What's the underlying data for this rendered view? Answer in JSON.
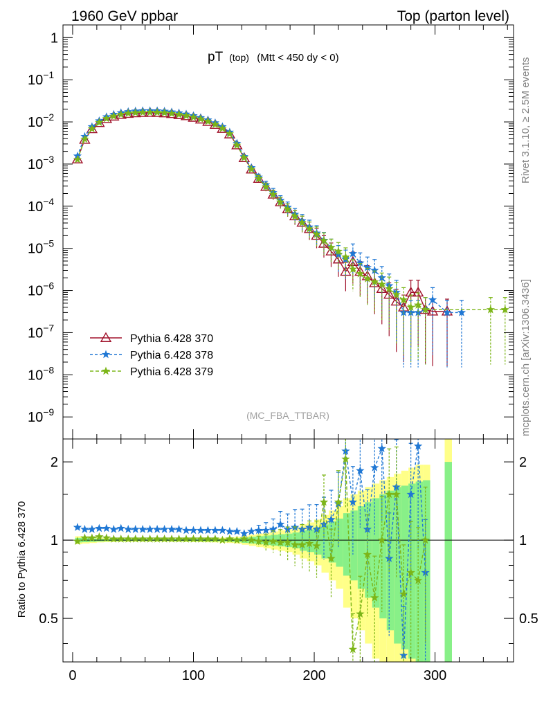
{
  "header": {
    "left": "1960 GeV ppbar",
    "right": "Top (parton level)"
  },
  "side_labels": {
    "rivet": "Rivet 3.1.10, ≥ 2.5M events",
    "mcplots": "mcplots.cern.ch [arXiv:1306.3436]"
  },
  "colors": {
    "p370": "#a0112a",
    "p378": "#1f77d4",
    "p379": "#7cb518",
    "band_yellow": "#ffff88",
    "band_green": "#88f088"
  },
  "chart_data": [
    {
      "type": "line",
      "title_main": "pT",
      "title_sub": "(top)",
      "title_rest": "(Mtt < 450 dy < 0)",
      "watermark": "(MC_FBA_TTBAR)",
      "yscale": "log",
      "xlim": [
        -8,
        365
      ],
      "ylim": [
        3e-10,
        2.0
      ],
      "y_ticks": [
        {
          "v": 1,
          "label": "1"
        },
        {
          "v": 0.1,
          "base": "10",
          "exp": "−1"
        },
        {
          "v": 0.01,
          "base": "10",
          "exp": "−2"
        },
        {
          "v": 0.001,
          "base": "10",
          "exp": "−3"
        },
        {
          "v": 0.0001,
          "base": "10",
          "exp": "−4"
        },
        {
          "v": 1e-05,
          "base": "10",
          "exp": "−5"
        },
        {
          "v": 1e-06,
          "base": "10",
          "exp": "−6"
        },
        {
          "v": 1e-07,
          "base": "10",
          "exp": "−7"
        },
        {
          "v": 1e-08,
          "base": "10",
          "exp": "−8"
        },
        {
          "v": 1e-09,
          "base": "10",
          "exp": "−9"
        }
      ],
      "legend": {
        "placement": "lower-left",
        "entries": [
          {
            "label": "Pythia 6.428 370",
            "key": "p370"
          },
          {
            "label": "Pythia 6.428 378",
            "key": "p378"
          },
          {
            "label": "Pythia 6.428 379",
            "key": "p379"
          }
        ]
      },
      "series": [
        {
          "name": "Pythia 6.428 370",
          "key": "p370",
          "marker": "triangle",
          "x": [
            4,
            10,
            16,
            22,
            28,
            34,
            40,
            46,
            52,
            58,
            64,
            70,
            76,
            82,
            88,
            94,
            100,
            106,
            112,
            118,
            124,
            130,
            136,
            142,
            148,
            154,
            160,
            166,
            172,
            178,
            184,
            190,
            196,
            202,
            208,
            214,
            220,
            226,
            232,
            238,
            244,
            250,
            256,
            262,
            268,
            274,
            280,
            286,
            292,
            298,
            310
          ],
          "y": [
            0.0013,
            0.0038,
            0.0068,
            0.0095,
            0.0118,
            0.0135,
            0.0148,
            0.0157,
            0.0162,
            0.0165,
            0.0166,
            0.0165,
            0.0161,
            0.0155,
            0.0147,
            0.0138,
            0.0127,
            0.0115,
            0.0101,
            0.0086,
            0.0069,
            0.0051,
            0.0028,
            0.0014,
            0.00075,
            0.00045,
            0.00029,
            0.00019,
            0.000125,
            8.5e-05,
            5.8e-05,
            4.1e-05,
            2.9e-05,
            2e-05,
            1.3e-05,
            8.5e-06,
            5.5e-06,
            2.8e-06,
            4.8e-06,
            2.8e-06,
            2.2e-06,
            1.5e-06,
            1.1e-06,
            8e-07,
            5.5e-07,
            4e-07,
            9e-07,
            9e-07,
            3.5e-07,
            3.2e-07,
            3.2e-07
          ]
        },
        {
          "name": "Pythia 6.428 378",
          "key": "p378",
          "marker": "star",
          "x": [
            4,
            10,
            16,
            22,
            28,
            34,
            40,
            46,
            52,
            58,
            64,
            70,
            76,
            82,
            88,
            94,
            100,
            106,
            112,
            118,
            124,
            130,
            136,
            142,
            148,
            154,
            160,
            166,
            172,
            178,
            184,
            190,
            196,
            202,
            208,
            214,
            220,
            226,
            232,
            238,
            244,
            250,
            256,
            262,
            268,
            274,
            280,
            286,
            292,
            298,
            310,
            322
          ],
          "y": [
            0.00155,
            0.0045,
            0.0077,
            0.0106,
            0.0132,
            0.0151,
            0.0165,
            0.0175,
            0.0181,
            0.0184,
            0.0184,
            0.0183,
            0.0179,
            0.0172,
            0.0163,
            0.0153,
            0.014,
            0.0126,
            0.0111,
            0.0095,
            0.0077,
            0.0057,
            0.0031,
            0.0015,
            0.00082,
            0.00049,
            0.00032,
            0.00021,
            0.000137,
            9.4e-05,
            6.4e-05,
            4.5e-05,
            3.2e-05,
            2.3e-05,
            1.55e-05,
            1.05e-05,
            7.2e-06,
            5.5e-06,
            7.5e-06,
            4.5e-06,
            3.5e-06,
            3e-06,
            2e-06,
            1.3e-06,
            9e-07,
            3e-07,
            3e-07,
            3e-07,
            3.5e-07,
            6e-07,
            3e-07,
            3e-07
          ]
        },
        {
          "name": "Pythia 6.428 379",
          "key": "p379",
          "marker": "star",
          "x": [
            4,
            10,
            16,
            22,
            28,
            34,
            40,
            46,
            52,
            58,
            64,
            70,
            76,
            82,
            88,
            94,
            100,
            106,
            112,
            118,
            124,
            130,
            136,
            142,
            148,
            154,
            160,
            166,
            172,
            178,
            184,
            190,
            196,
            202,
            208,
            214,
            220,
            226,
            232,
            238,
            244,
            250,
            256,
            262,
            268,
            274,
            280,
            286,
            292,
            346,
            358
          ],
          "y": [
            0.00128,
            0.0039,
            0.0069,
            0.0097,
            0.012,
            0.0137,
            0.015,
            0.016,
            0.0165,
            0.0168,
            0.0169,
            0.0168,
            0.0164,
            0.0158,
            0.015,
            0.014,
            0.0129,
            0.0117,
            0.0103,
            0.0087,
            0.007,
            0.0052,
            0.0028,
            0.00142,
            0.00075,
            0.00045,
            0.00029,
            0.00019,
            0.000125,
            8.5e-05,
            5.8e-05,
            4.1e-05,
            2.9e-05,
            2.15e-05,
            1.52e-05,
            1.05e-05,
            8.5e-06,
            6.2e-06,
            3.2e-06,
            2.5e-06,
            1.9e-06,
            1.6e-06,
            1.4e-06,
            1.1e-06,
            8e-07,
            6e-07,
            4e-07,
            4.5e-07,
            3.5e-07,
            3.5e-07,
            3.5e-07
          ]
        }
      ]
    },
    {
      "type": "line",
      "ylabel": "Ratio to Pythia 6.428 370",
      "yscale": "log",
      "xlim": [
        -8,
        365
      ],
      "ylim": [
        0.34,
        2.45
      ],
      "x_ticks": [
        0,
        100,
        200,
        300
      ],
      "y_ticks": [
        0.5,
        1,
        2
      ],
      "reference_line": 1,
      "band_yellow_x": [
        2,
        8,
        14,
        20,
        26,
        32,
        38,
        44,
        50,
        56,
        62,
        68,
        74,
        80,
        86,
        92,
        98,
        104,
        110,
        116,
        122,
        128,
        134,
        140,
        146,
        152,
        158,
        164,
        170,
        176,
        182,
        188,
        194,
        200,
        206,
        212,
        218,
        224,
        230,
        236,
        242,
        248,
        254,
        260,
        266,
        272,
        278,
        284,
        290,
        296,
        308
      ],
      "band_yellow_y": [
        0.035,
        0.03,
        0.025,
        0.02,
        0.018,
        0.016,
        0.015,
        0.015,
        0.014,
        0.014,
        0.014,
        0.014,
        0.014,
        0.015,
        0.015,
        0.016,
        0.017,
        0.018,
        0.019,
        0.02,
        0.022,
        0.025,
        0.03,
        0.04,
        0.05,
        0.06,
        0.07,
        0.08,
        0.09,
        0.1,
        0.12,
        0.15,
        0.17,
        0.2,
        0.25,
        0.3,
        0.35,
        0.45,
        0.5,
        0.55,
        0.6,
        0.65,
        0.7,
        0.75,
        0.8,
        0.85,
        0.9,
        0.95,
        0.95,
        0,
        1.5
      ],
      "band_green_y": [
        0.02,
        0.018,
        0.015,
        0.012,
        0.01,
        0.009,
        0.009,
        0.008,
        0.008,
        0.008,
        0.008,
        0.008,
        0.008,
        0.009,
        0.009,
        0.01,
        0.01,
        0.011,
        0.012,
        0.012,
        0.013,
        0.015,
        0.018,
        0.024,
        0.03,
        0.036,
        0.042,
        0.048,
        0.054,
        0.06,
        0.07,
        0.09,
        0.1,
        0.12,
        0.15,
        0.18,
        0.21,
        0.27,
        0.3,
        0.35,
        0.4,
        0.45,
        0.5,
        0.55,
        0.6,
        0.62,
        0.65,
        0.68,
        0.7,
        0,
        1.0
      ],
      "series": [
        {
          "name": "Pythia 6.428 378",
          "key": "p378",
          "x": [
            4,
            10,
            16,
            22,
            28,
            34,
            40,
            46,
            52,
            58,
            64,
            70,
            76,
            82,
            88,
            94,
            100,
            106,
            112,
            118,
            124,
            130,
            136,
            142,
            148,
            154,
            160,
            166,
            172,
            178,
            184,
            190,
            196,
            202,
            208,
            214,
            220,
            226,
            232,
            238,
            244,
            250,
            256,
            262,
            268,
            274,
            280,
            286,
            292
          ],
          "y": [
            1.12,
            1.1,
            1.1,
            1.11,
            1.11,
            1.1,
            1.11,
            1.1,
            1.1,
            1.1,
            1.1,
            1.1,
            1.1,
            1.1,
            1.1,
            1.09,
            1.09,
            1.09,
            1.09,
            1.09,
            1.09,
            1.08,
            1.08,
            1.06,
            1.08,
            1.09,
            1.09,
            1.1,
            1.15,
            1.1,
            1.12,
            1.1,
            1.12,
            1.1,
            1.15,
            1.2,
            1.38,
            2.2,
            1.4,
            1.85,
            1.1,
            1.9,
            2.25,
            0.85,
            1.6,
            0.36,
            1.5,
            2.3,
            0.75
          ]
        },
        {
          "name": "Pythia 6.428 379",
          "key": "p379",
          "x": [
            4,
            10,
            16,
            22,
            28,
            34,
            40,
            46,
            52,
            58,
            64,
            70,
            76,
            82,
            88,
            94,
            100,
            106,
            112,
            118,
            124,
            130,
            136,
            142,
            148,
            154,
            160,
            166,
            172,
            178,
            184,
            190,
            196,
            202,
            208,
            214,
            220,
            226,
            232,
            238,
            244,
            250,
            256,
            262,
            268,
            274,
            280,
            286,
            292
          ],
          "y": [
            0.99,
            1.02,
            1.02,
            1.03,
            1.02,
            1.01,
            1.01,
            1.01,
            1.01,
            1.01,
            1.01,
            1.01,
            1.01,
            1.01,
            1.01,
            1.01,
            1.01,
            1.01,
            1.01,
            1.01,
            1.0,
            1.01,
            1.0,
            1.01,
            1.0,
            0.99,
            0.98,
            0.99,
            0.98,
            0.98,
            0.96,
            0.96,
            0.97,
            0.95,
            1.4,
            0.85,
            1.4,
            2.05,
            0.38,
            0.52,
            0.88,
            0.6,
            1.0,
            1.5,
            1.5,
            0.62,
            0.75,
            0.7,
            1.0
          ]
        }
      ]
    }
  ]
}
